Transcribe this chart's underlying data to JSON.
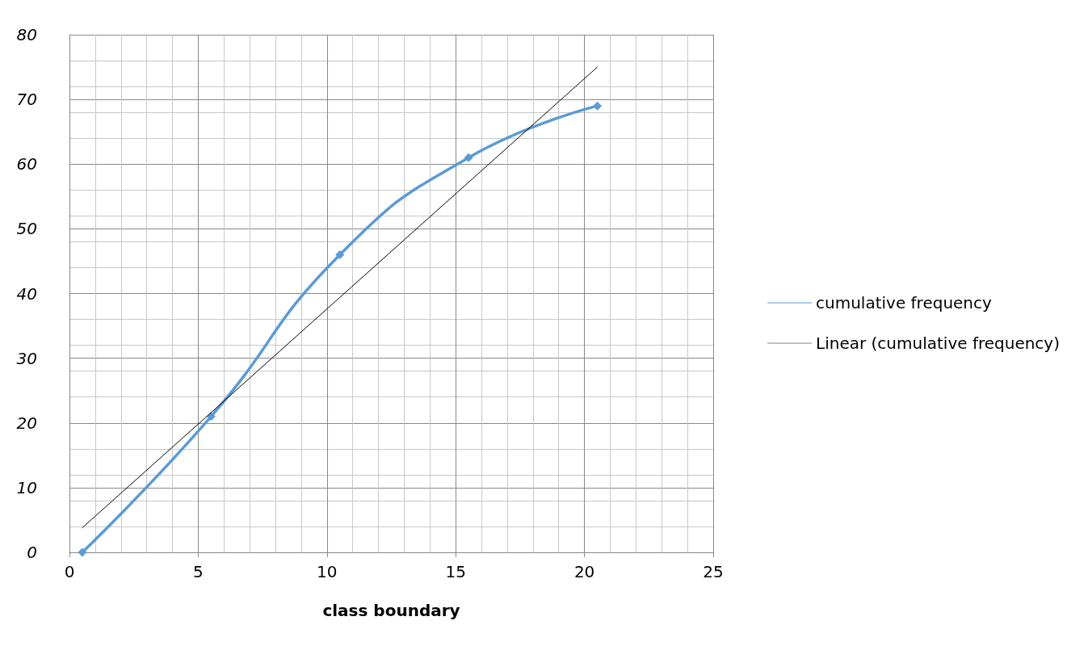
{
  "chart_data": {
    "type": "line",
    "xlabel": "class boundary",
    "x": [
      0.5,
      5.5,
      10.5,
      15.5,
      20.5
    ],
    "series": [
      {
        "name": "cumulative frequency",
        "color": "#5b9bd5",
        "values": [
          0,
          21,
          46,
          61,
          69
        ],
        "marker": "diamond"
      },
      {
        "name": "Linear (cumulative frequency)",
        "color": "#000000",
        "x": [
          0.5,
          20.5
        ],
        "values": [
          3.8,
          75.0
        ],
        "marker": "none"
      }
    ],
    "xlim": [
      0,
      25
    ],
    "xticks": [
      0,
      5,
      10,
      15,
      20,
      25
    ],
    "ylim": [
      0,
      80
    ],
    "yticks": [
      0,
      10,
      20,
      30,
      40,
      50,
      60,
      70,
      80
    ],
    "grid": true,
    "legend": "right"
  }
}
